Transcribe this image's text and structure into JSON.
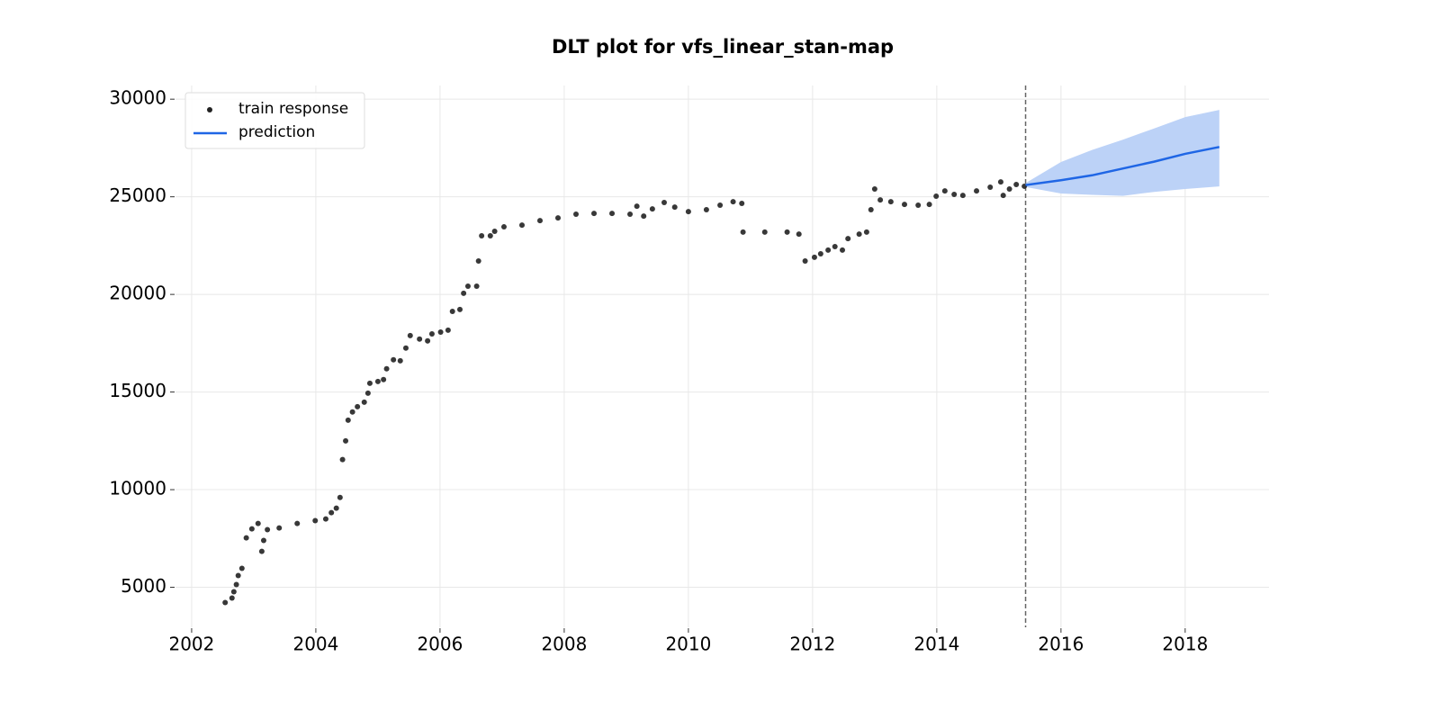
{
  "chart_data": {
    "type": "scatter_forecast",
    "title": "DLT plot for vfs_linear_stan-map",
    "xlim": [
      2001.74,
      2019.35
    ],
    "ylim": [
      2950,
      30700
    ],
    "xticks": [
      2002,
      2004,
      2006,
      2008,
      2010,
      2012,
      2014,
      2016,
      2018
    ],
    "yticks": [
      5000,
      10000,
      15000,
      20000,
      25000,
      30000
    ],
    "grid": true,
    "legend": "upper left",
    "cutoff_x": 2015.43,
    "series": [
      {
        "name": "train response",
        "color": "#222222",
        "x": [
          2002.54,
          2002.65,
          2002.68,
          2002.72,
          2002.75,
          2002.81,
          2002.88,
          2002.97,
          2003.07,
          2003.13,
          2003.16,
          2003.22,
          2003.41,
          2003.7,
          2003.99,
          2004.16,
          2004.25,
          2004.33,
          2004.39,
          2004.43,
          2004.48,
          2004.52,
          2004.59,
          2004.67,
          2004.78,
          2004.84,
          2004.87,
          2005.0,
          2005.09,
          2005.14,
          2005.25,
          2005.36,
          2005.45,
          2005.52,
          2005.67,
          2005.8,
          2005.87,
          2006.01,
          2006.13,
          2006.2,
          2006.32,
          2006.38,
          2006.45,
          2006.59,
          2006.62,
          2006.67,
          2006.81,
          2006.88,
          2007.03,
          2007.32,
          2007.61,
          2007.9,
          2008.19,
          2008.48,
          2008.77,
          2009.06,
          2009.17,
          2009.28,
          2009.42,
          2009.61,
          2009.78,
          2010.0,
          2010.29,
          2010.51,
          2010.72,
          2010.86,
          2010.88,
          2011.23,
          2011.59,
          2011.78,
          2011.88,
          2012.03,
          2012.13,
          2012.25,
          2012.36,
          2012.48,
          2012.57,
          2012.75,
          2012.87,
          2012.94,
          2013.0,
          2013.09,
          2013.26,
          2013.48,
          2013.7,
          2013.88,
          2013.99,
          2014.13,
          2014.28,
          2014.42,
          2014.64,
          2014.86,
          2015.03,
          2015.07,
          2015.17,
          2015.28,
          2015.41
        ],
        "values": [
          4217,
          4450,
          4770,
          5140,
          5600,
          5970,
          7530,
          7990,
          8270,
          6840,
          7400,
          7950,
          8040,
          8270,
          8410,
          8500,
          8820,
          9050,
          9600,
          11540,
          12500,
          13560,
          13980,
          14250,
          14480,
          14940,
          15450,
          15540,
          15640,
          16190,
          16650,
          16600,
          17250,
          17890,
          17710,
          17620,
          17980,
          18070,
          18170,
          19130,
          19230,
          20060,
          20420,
          20420,
          21710,
          23000,
          23000,
          23230,
          23460,
          23550,
          23780,
          23920,
          24110,
          24150,
          24150,
          24110,
          24520,
          24010,
          24380,
          24710,
          24470,
          24240,
          24340,
          24570,
          24750,
          24660,
          23190,
          23190,
          23190,
          23090,
          21710,
          21900,
          22080,
          22270,
          22450,
          22270,
          22860,
          23090,
          23190,
          24340,
          25400,
          24840,
          24750,
          24610,
          24570,
          24610,
          25030,
          25300,
          25120,
          25070,
          25300,
          25490,
          25760,
          25070,
          25400,
          25630,
          25540
        ]
      },
      {
        "name": "prediction",
        "color": "#1f66e5",
        "band_color": "#bcd2f7",
        "x": [
          2015.43,
          2016.0,
          2016.5,
          2017.0,
          2017.5,
          2018.0,
          2018.55
        ],
        "values": [
          25600,
          25850,
          26100,
          26450,
          26800,
          27200,
          27550
        ],
        "upper": [
          25700,
          26780,
          27400,
          27930,
          28500,
          29080,
          29450
        ],
        "lower": [
          25500,
          25170,
          25100,
          25050,
          25250,
          25400,
          25530
        ]
      }
    ]
  }
}
